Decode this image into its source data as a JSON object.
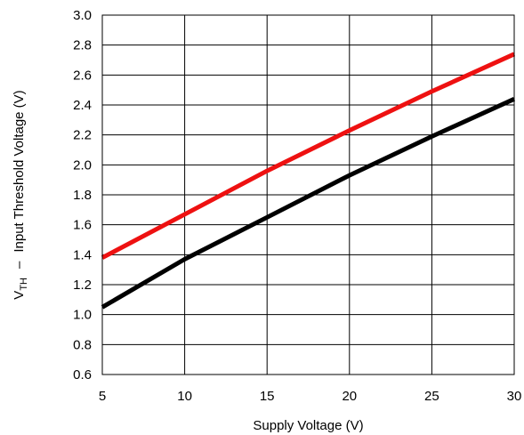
{
  "chart_data": {
    "type": "line",
    "xlabel": "Supply Voltage (V)",
    "ylabel": {
      "symbol": "V",
      "subscript": "TH",
      "separator": "–",
      "text": "Input Threshold Voltage (V)"
    },
    "xlim": [
      5,
      30
    ],
    "ylim": [
      0.6,
      3.0
    ],
    "x_ticks": [
      "5",
      "10",
      "15",
      "20",
      "25",
      "30"
    ],
    "y_ticks": [
      "0.6",
      "0.8",
      "1.0",
      "1.2",
      "1.4",
      "1.6",
      "1.8",
      "2.0",
      "2.2",
      "2.4",
      "2.6",
      "2.8",
      "3.0"
    ],
    "grid": true,
    "legend": "none",
    "series": [
      {
        "color": "#ee1111",
        "x": [
          5,
          10,
          15,
          20,
          25,
          30
        ],
        "y": [
          1.38,
          1.67,
          1.96,
          2.23,
          2.49,
          2.74
        ]
      },
      {
        "color": "#000000",
        "x": [
          5,
          10,
          15,
          20,
          25,
          30
        ],
        "y": [
          1.05,
          1.37,
          1.65,
          1.93,
          2.19,
          2.44
        ]
      }
    ]
  }
}
